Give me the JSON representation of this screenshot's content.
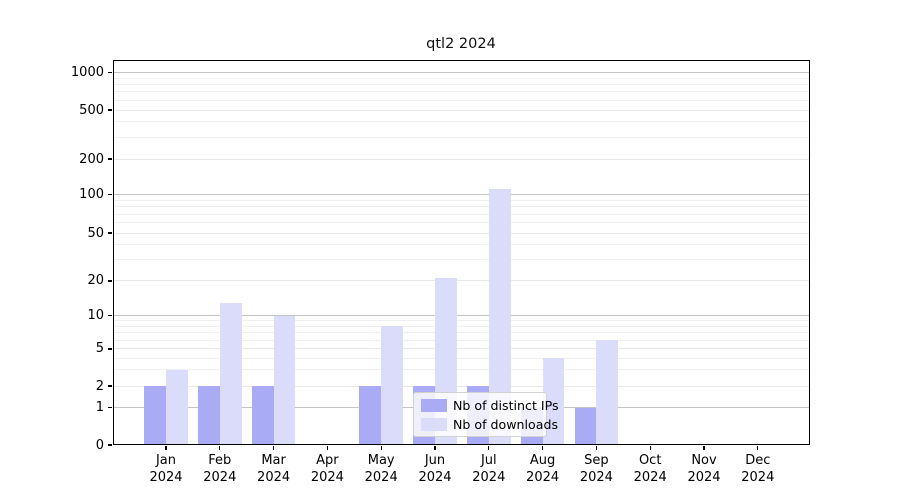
{
  "title": "qtl2 2024",
  "legend": {
    "items": [
      {
        "id": "distinct-ips",
        "label": "Nb of distinct IPs",
        "color": "#a9acf5"
      },
      {
        "id": "downloads",
        "label": "Nb of downloads",
        "color": "#dadcf9"
      }
    ]
  },
  "chart_data": {
    "type": "bar",
    "title": "qtl2 2024",
    "categories": [
      "Jan 2024",
      "Feb 2024",
      "Mar 2024",
      "Apr 2024",
      "May 2024",
      "Jun 2024",
      "Jul 2024",
      "Aug 2024",
      "Sep 2024",
      "Oct 2024",
      "Nov 2024",
      "Dec 2024"
    ],
    "x_month_labels": [
      "Jan",
      "Feb",
      "Mar",
      "Apr",
      "May",
      "Jun",
      "Jul",
      "Aug",
      "Sep",
      "Oct",
      "Nov",
      "Dec"
    ],
    "x_year_label": "2024",
    "series": [
      {
        "name": "Nb of distinct IPs",
        "color": "#a9acf5",
        "values": [
          2,
          2,
          2,
          0,
          2,
          2,
          2,
          1,
          1,
          0,
          0,
          0
        ]
      },
      {
        "name": "Nb of downloads",
        "color": "#dadcf9",
        "values": [
          3,
          13,
          10,
          0,
          8,
          21,
          112,
          4,
          6,
          0,
          0,
          0
        ]
      }
    ],
    "xlabel": "",
    "ylabel": "",
    "yscale": "log-like (0 baseline, log above 1)",
    "yticks": [
      0,
      1,
      2,
      5,
      10,
      20,
      50,
      100,
      200,
      500,
      1000
    ],
    "ylim": [
      0,
      1300
    ],
    "grid": "horizontal major and minor gridlines",
    "legend_position": "lower center inside plot"
  },
  "colors": {
    "bar_distinct_ips": "#a9acf5",
    "bar_downloads": "#dadcf9",
    "grid_major": "#c4c4c4",
    "grid_mid": "#e8e8e8",
    "grid_minor": "#f0f0f0",
    "axis": "#000000",
    "background": "#ffffff",
    "text": "#000000"
  }
}
